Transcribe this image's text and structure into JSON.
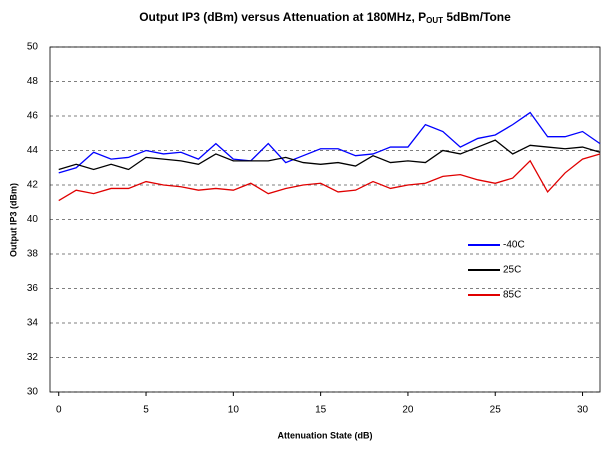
{
  "chart_data": {
    "type": "line",
    "title": {
      "main": "Output IP3 (dBm) versus Attenuation at 180MHz, P",
      "subscript": "OUT",
      "rest": " 5dBm/Tone"
    },
    "x_label": "Attenuation State (dB)",
    "y_label": "Output IP3 (dBm)",
    "x": [
      0,
      1,
      2,
      3,
      4,
      5,
      6,
      7,
      8,
      9,
      10,
      11,
      12,
      13,
      14,
      15,
      16,
      17,
      18,
      19,
      20,
      21,
      22,
      23,
      24,
      25,
      26,
      27,
      28,
      29,
      30,
      31
    ],
    "series": [
      {
        "name": "-40C",
        "color": "#0000ff",
        "values": [
          42.7,
          43.0,
          43.9,
          43.5,
          43.6,
          44.0,
          43.8,
          43.9,
          43.5,
          44.4,
          43.5,
          43.4,
          44.4,
          43.3,
          43.7,
          44.1,
          44.1,
          43.7,
          43.8,
          44.2,
          44.2,
          45.5,
          45.1,
          44.2,
          44.7,
          44.9,
          45.5,
          46.2,
          44.8,
          44.8,
          45.1,
          44.4
        ]
      },
      {
        "name": "25C",
        "color": "#000000",
        "values": [
          42.9,
          43.2,
          42.9,
          43.2,
          42.9,
          43.6,
          43.5,
          43.4,
          43.2,
          43.8,
          43.4,
          43.4,
          43.4,
          43.6,
          43.3,
          43.2,
          43.3,
          43.1,
          43.7,
          43.3,
          43.4,
          43.3,
          44.0,
          43.8,
          44.2,
          44.6,
          43.8,
          44.3,
          44.2,
          44.1,
          44.2,
          43.9
        ]
      },
      {
        "name": "85C",
        "color": "#e00000",
        "values": [
          41.1,
          41.7,
          41.5,
          41.8,
          41.8,
          42.2,
          42.0,
          41.9,
          41.7,
          41.8,
          41.7,
          42.1,
          41.5,
          41.8,
          42.0,
          42.1,
          41.6,
          41.7,
          42.2,
          41.8,
          42.0,
          42.1,
          42.5,
          42.6,
          42.3,
          42.1,
          42.4,
          43.4,
          41.6,
          42.7,
          43.5,
          43.8
        ]
      }
    ],
    "xlim": [
      -0.5,
      31
    ],
    "xticks": [
      0,
      5,
      10,
      15,
      20,
      25,
      30
    ],
    "ylim": [
      30,
      50
    ],
    "yticks": [
      30,
      32,
      34,
      36,
      38,
      40,
      42,
      44,
      46,
      48,
      50
    ],
    "grid": true,
    "legend": "right"
  }
}
